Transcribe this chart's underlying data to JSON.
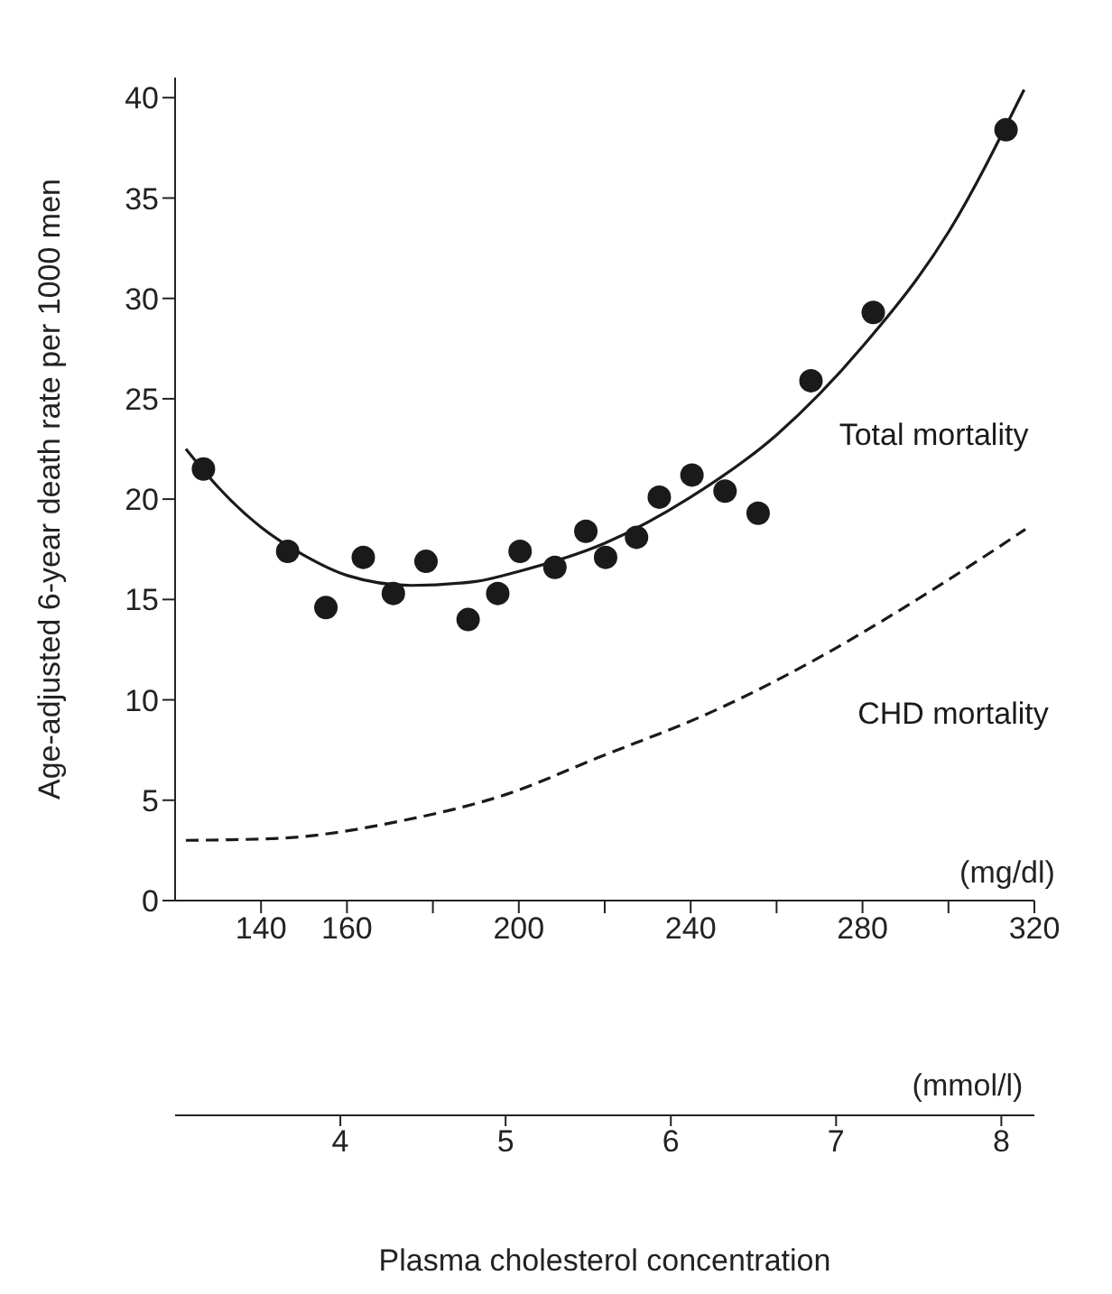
{
  "chart_data": {
    "type": "scatter",
    "xlabel": "Plasma cholesterol concentration",
    "ylabel": "Age-adjusted 6-year death rate per 1000 men",
    "xlim": [
      120,
      320
    ],
    "xticks": [
      140,
      160,
      {
        "value": 180,
        "label": null
      },
      200,
      {
        "value": 220,
        "label": null
      },
      240,
      {
        "value": 260,
        "label": null
      },
      280,
      {
        "value": 300,
        "label": null
      },
      320
    ],
    "x2lim": [
      3.0,
      8.2
    ],
    "x2ticks": [
      4,
      5,
      6,
      7,
      8
    ],
    "ylim": [
      0,
      41
    ],
    "yticks": [
      0,
      5,
      10,
      15,
      20,
      25,
      30,
      35,
      40
    ],
    "grid": false,
    "legend": false,
    "annotations": [
      "(mg/dl)",
      "(mmol/l)"
    ],
    "series": [
      {
        "color": "#1a1a1a",
        "marker": "circle",
        "x": [
          126.6,
          146.2,
          155.1,
          163.8,
          170.8,
          178.4,
          188.2,
          195.1,
          200.3,
          208.4,
          215.6,
          220.2,
          227.4,
          232.7,
          240.3,
          248.0,
          255.7,
          268.0,
          282.5,
          313.4
        ],
        "values": [
          21.5,
          17.4,
          14.6,
          17.1,
          15.3,
          16.9,
          14.0,
          15.3,
          17.4,
          16.6,
          18.4,
          17.1,
          18.1,
          20.1,
          21.2,
          20.4,
          19.3,
          25.9,
          29.3,
          38.4
        ]
      },
      {
        "type": "line",
        "name": "Total mortality",
        "color": "#1a1a1a",
        "marker": "none",
        "line_style": "solid",
        "x": [
          122.5,
          130,
          140,
          150,
          160,
          175,
          190,
          200,
          220,
          240,
          260,
          280,
          300,
          317.6
        ],
        "values": [
          22.5,
          20.6,
          18.6,
          17.2,
          16.2,
          15.7,
          15.9,
          16.4,
          17.8,
          20.1,
          23.2,
          27.6,
          33.3,
          40.4
        ]
      },
      {
        "type": "line",
        "name": "CHD mortality",
        "color": "#1a1a1a",
        "marker": "none",
        "line_style": "dashed",
        "x": [
          122.5,
          143.9,
          173.3,
          197.2,
          218.2,
          244.9,
          310.9,
          317.9
        ],
        "values": [
          3.0,
          3.1,
          4.0,
          5.3,
          7.1,
          9.4,
          17.5,
          18.5
        ]
      }
    ]
  }
}
